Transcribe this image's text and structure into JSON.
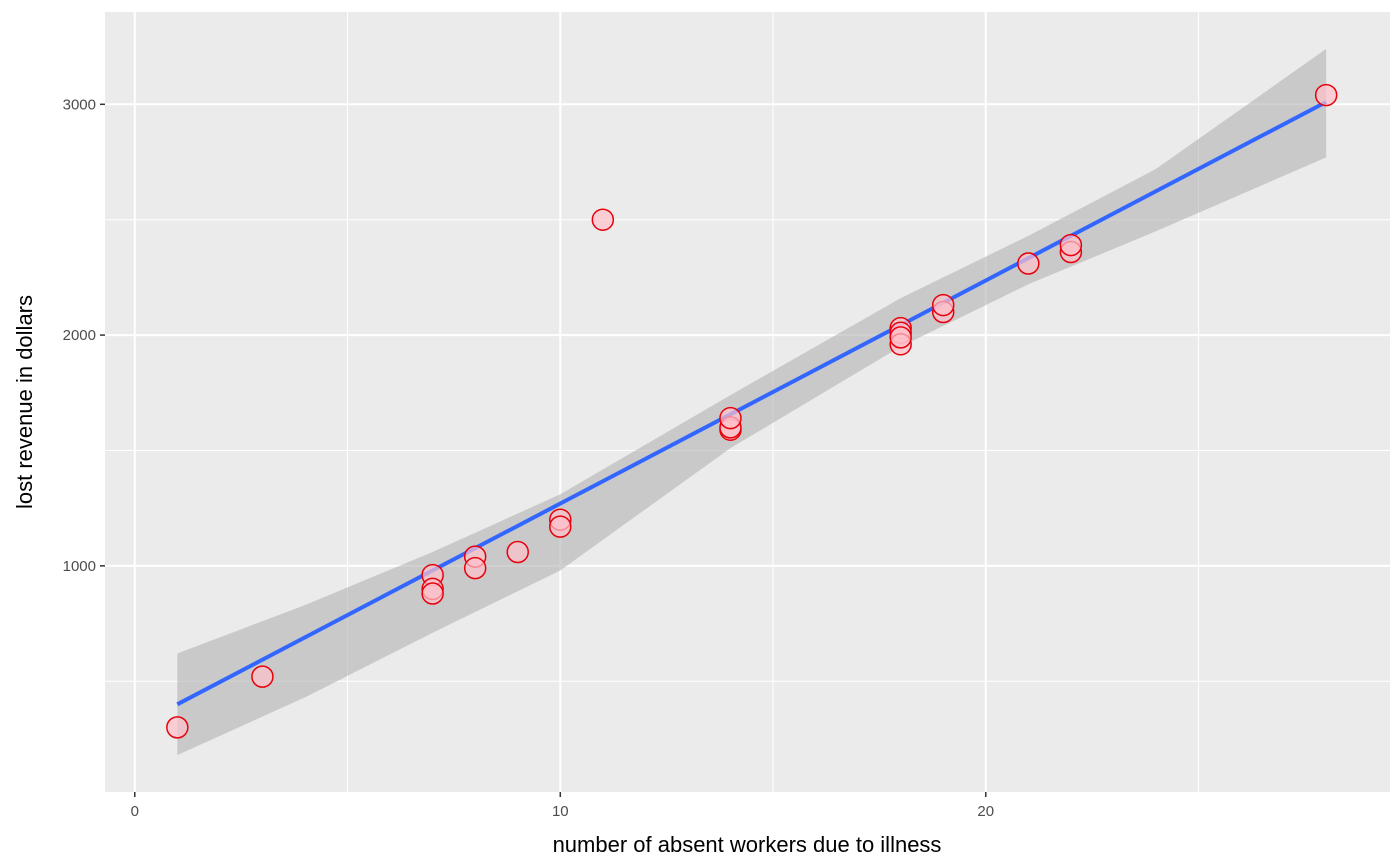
{
  "chart_data": {
    "type": "scatter",
    "title": "",
    "xlabel": "number of absent workers due to illness",
    "ylabel": "lost revenue in dollars",
    "xlim": [
      -0.7,
      29.5
    ],
    "ylim": [
      20,
      3400
    ],
    "x_ticks": [
      0,
      10,
      20
    ],
    "y_ticks": [
      1000,
      2000,
      3000
    ],
    "x_tick_labels": [
      "0",
      "10",
      "20"
    ],
    "y_tick_labels": [
      "1000",
      "2000",
      "3000"
    ],
    "x_minor": [
      5,
      15,
      25
    ],
    "y_minor": [
      500,
      1500,
      2500
    ],
    "grid": true,
    "points": [
      {
        "x": 1,
        "y": 300
      },
      {
        "x": 3,
        "y": 520
      },
      {
        "x": 7,
        "y": 960
      },
      {
        "x": 7,
        "y": 900
      },
      {
        "x": 7,
        "y": 880
      },
      {
        "x": 8,
        "y": 1040
      },
      {
        "x": 8,
        "y": 990
      },
      {
        "x": 9,
        "y": 1060
      },
      {
        "x": 10,
        "y": 1200
      },
      {
        "x": 10,
        "y": 1170
      },
      {
        "x": 11,
        "y": 2500
      },
      {
        "x": 14,
        "y": 1590
      },
      {
        "x": 14,
        "y": 1600
      },
      {
        "x": 14,
        "y": 1640
      },
      {
        "x": 18,
        "y": 2030
      },
      {
        "x": 18,
        "y": 2010
      },
      {
        "x": 18,
        "y": 1960
      },
      {
        "x": 18,
        "y": 1990
      },
      {
        "x": 19,
        "y": 2100
      },
      {
        "x": 19,
        "y": 2130
      },
      {
        "x": 21,
        "y": 2310
      },
      {
        "x": 22,
        "y": 2360
      },
      {
        "x": 22,
        "y": 2390
      },
      {
        "x": 28,
        "y": 3040
      }
    ],
    "fit_line": {
      "x": [
        1,
        28
      ],
      "y": [
        400,
        3010
      ]
    },
    "confidence_band": {
      "x": [
        1,
        4,
        7,
        10,
        14,
        18,
        21,
        24,
        28
      ],
      "upper": [
        620,
        830,
        1060,
        1310,
        1740,
        2160,
        2430,
        2720,
        3240
      ],
      "lower": [
        180,
        430,
        710,
        980,
        1510,
        1950,
        2220,
        2450,
        2770
      ]
    },
    "colors": {
      "panel_background": "#ebebeb",
      "grid": "#ffffff",
      "fit_line": "#3366ff",
      "band": "#b3b3b3",
      "point_fill": "#ffc0cb",
      "point_stroke": "#e8000b"
    }
  }
}
